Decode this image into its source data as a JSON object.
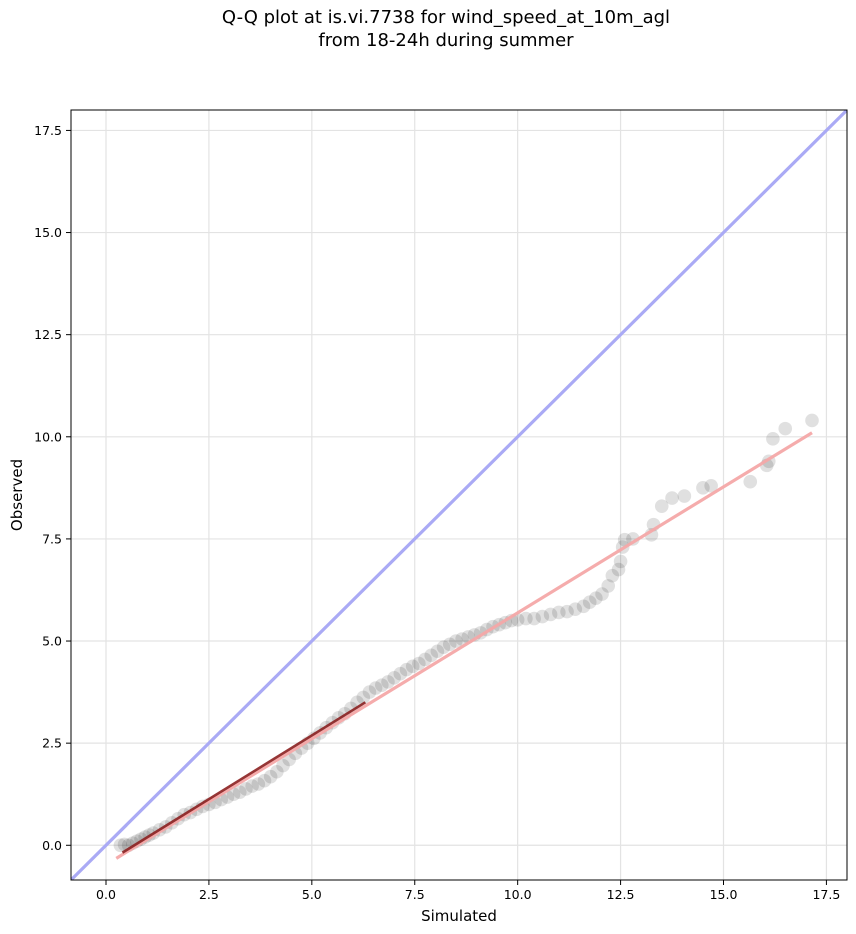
{
  "chart_data": {
    "type": "scatter",
    "title_line1": "Q-Q plot at is.vi.7738 for wind_speed_at_10m_agl",
    "title_line2": "from 18-24h during summer",
    "xlabel": "Simulated",
    "ylabel": "Observed",
    "xlim": [
      -0.85,
      18.0
    ],
    "ylim": [
      -0.85,
      18.0
    ],
    "xticks": [
      0.0,
      2.5,
      5.0,
      7.5,
      10.0,
      12.5,
      15.0,
      17.5
    ],
    "yticks": [
      0.0,
      2.5,
      5.0,
      7.5,
      10.0,
      12.5,
      15.0,
      17.5
    ],
    "xtick_labels": [
      "0.0",
      "2.5",
      "5.0",
      "7.5",
      "10.0",
      "12.5",
      "15.0",
      "17.5"
    ],
    "ytick_labels": [
      "0.0",
      "2.5",
      "5.0",
      "7.5",
      "10.0",
      "12.5",
      "15.0",
      "17.5"
    ],
    "grid": true,
    "identity_line": {
      "from": [
        -0.85,
        -0.85
      ],
      "to": [
        18.0,
        18.0
      ],
      "color": "#aaaaf5"
    },
    "fit_line": {
      "from": [
        0.25,
        -0.32
      ],
      "to": [
        17.15,
        10.1
      ],
      "color": "#f4a8a8"
    },
    "fit_line_dark": {
      "from": [
        0.4,
        -0.18
      ],
      "to": [
        6.3,
        3.5
      ],
      "color": "#8b2020"
    },
    "point_color": "#000000",
    "points": [
      [
        0.35,
        0.0
      ],
      [
        0.45,
        0.02
      ],
      [
        0.55,
        0.0
      ],
      [
        0.65,
        0.05
      ],
      [
        0.75,
        0.1
      ],
      [
        0.85,
        0.15
      ],
      [
        0.95,
        0.2
      ],
      [
        1.05,
        0.25
      ],
      [
        1.15,
        0.3
      ],
      [
        1.3,
        0.38
      ],
      [
        1.45,
        0.45
      ],
      [
        1.6,
        0.55
      ],
      [
        1.75,
        0.65
      ],
      [
        1.9,
        0.75
      ],
      [
        2.05,
        0.8
      ],
      [
        2.2,
        0.88
      ],
      [
        2.35,
        0.95
      ],
      [
        2.5,
        1.0
      ],
      [
        2.65,
        1.05
      ],
      [
        2.8,
        1.12
      ],
      [
        2.95,
        1.18
      ],
      [
        3.1,
        1.25
      ],
      [
        3.25,
        1.3
      ],
      [
        3.4,
        1.38
      ],
      [
        3.55,
        1.45
      ],
      [
        3.7,
        1.5
      ],
      [
        3.85,
        1.58
      ],
      [
        4.0,
        1.68
      ],
      [
        4.15,
        1.8
      ],
      [
        4.3,
        1.95
      ],
      [
        4.45,
        2.1
      ],
      [
        4.6,
        2.25
      ],
      [
        4.75,
        2.38
      ],
      [
        4.9,
        2.5
      ],
      [
        5.05,
        2.62
      ],
      [
        5.2,
        2.75
      ],
      [
        5.35,
        2.88
      ],
      [
        5.5,
        3.0
      ],
      [
        5.65,
        3.12
      ],
      [
        5.8,
        3.22
      ],
      [
        5.95,
        3.35
      ],
      [
        6.1,
        3.5
      ],
      [
        6.25,
        3.62
      ],
      [
        6.4,
        3.75
      ],
      [
        6.55,
        3.85
      ],
      [
        6.7,
        3.92
      ],
      [
        6.85,
        4.0
      ],
      [
        7.0,
        4.1
      ],
      [
        7.15,
        4.2
      ],
      [
        7.3,
        4.3
      ],
      [
        7.45,
        4.38
      ],
      [
        7.6,
        4.45
      ],
      [
        7.75,
        4.55
      ],
      [
        7.9,
        4.65
      ],
      [
        8.05,
        4.75
      ],
      [
        8.2,
        4.85
      ],
      [
        8.35,
        4.92
      ],
      [
        8.5,
        5.0
      ],
      [
        8.65,
        5.05
      ],
      [
        8.8,
        5.1
      ],
      [
        8.95,
        5.15
      ],
      [
        9.1,
        5.2
      ],
      [
        9.25,
        5.28
      ],
      [
        9.4,
        5.35
      ],
      [
        9.55,
        5.4
      ],
      [
        9.7,
        5.45
      ],
      [
        9.85,
        5.5
      ],
      [
        10.0,
        5.52
      ],
      [
        10.2,
        5.55
      ],
      [
        10.4,
        5.55
      ],
      [
        10.6,
        5.6
      ],
      [
        10.8,
        5.65
      ],
      [
        11.0,
        5.7
      ],
      [
        11.2,
        5.72
      ],
      [
        11.4,
        5.78
      ],
      [
        11.6,
        5.85
      ],
      [
        11.75,
        5.95
      ],
      [
        11.9,
        6.05
      ],
      [
        12.05,
        6.15
      ],
      [
        12.2,
        6.35
      ],
      [
        12.3,
        6.6
      ],
      [
        12.45,
        6.75
      ],
      [
        12.5,
        6.95
      ],
      [
        12.55,
        7.3
      ],
      [
        12.6,
        7.48
      ],
      [
        12.8,
        7.5
      ],
      [
        13.25,
        7.6
      ],
      [
        13.3,
        7.85
      ],
      [
        13.5,
        8.3
      ],
      [
        13.75,
        8.5
      ],
      [
        14.05,
        8.55
      ],
      [
        14.5,
        8.75
      ],
      [
        14.7,
        8.8
      ],
      [
        15.65,
        8.9
      ],
      [
        16.05,
        9.3
      ],
      [
        16.1,
        9.4
      ],
      [
        16.2,
        9.95
      ],
      [
        16.5,
        10.2
      ],
      [
        17.15,
        10.4
      ]
    ]
  }
}
